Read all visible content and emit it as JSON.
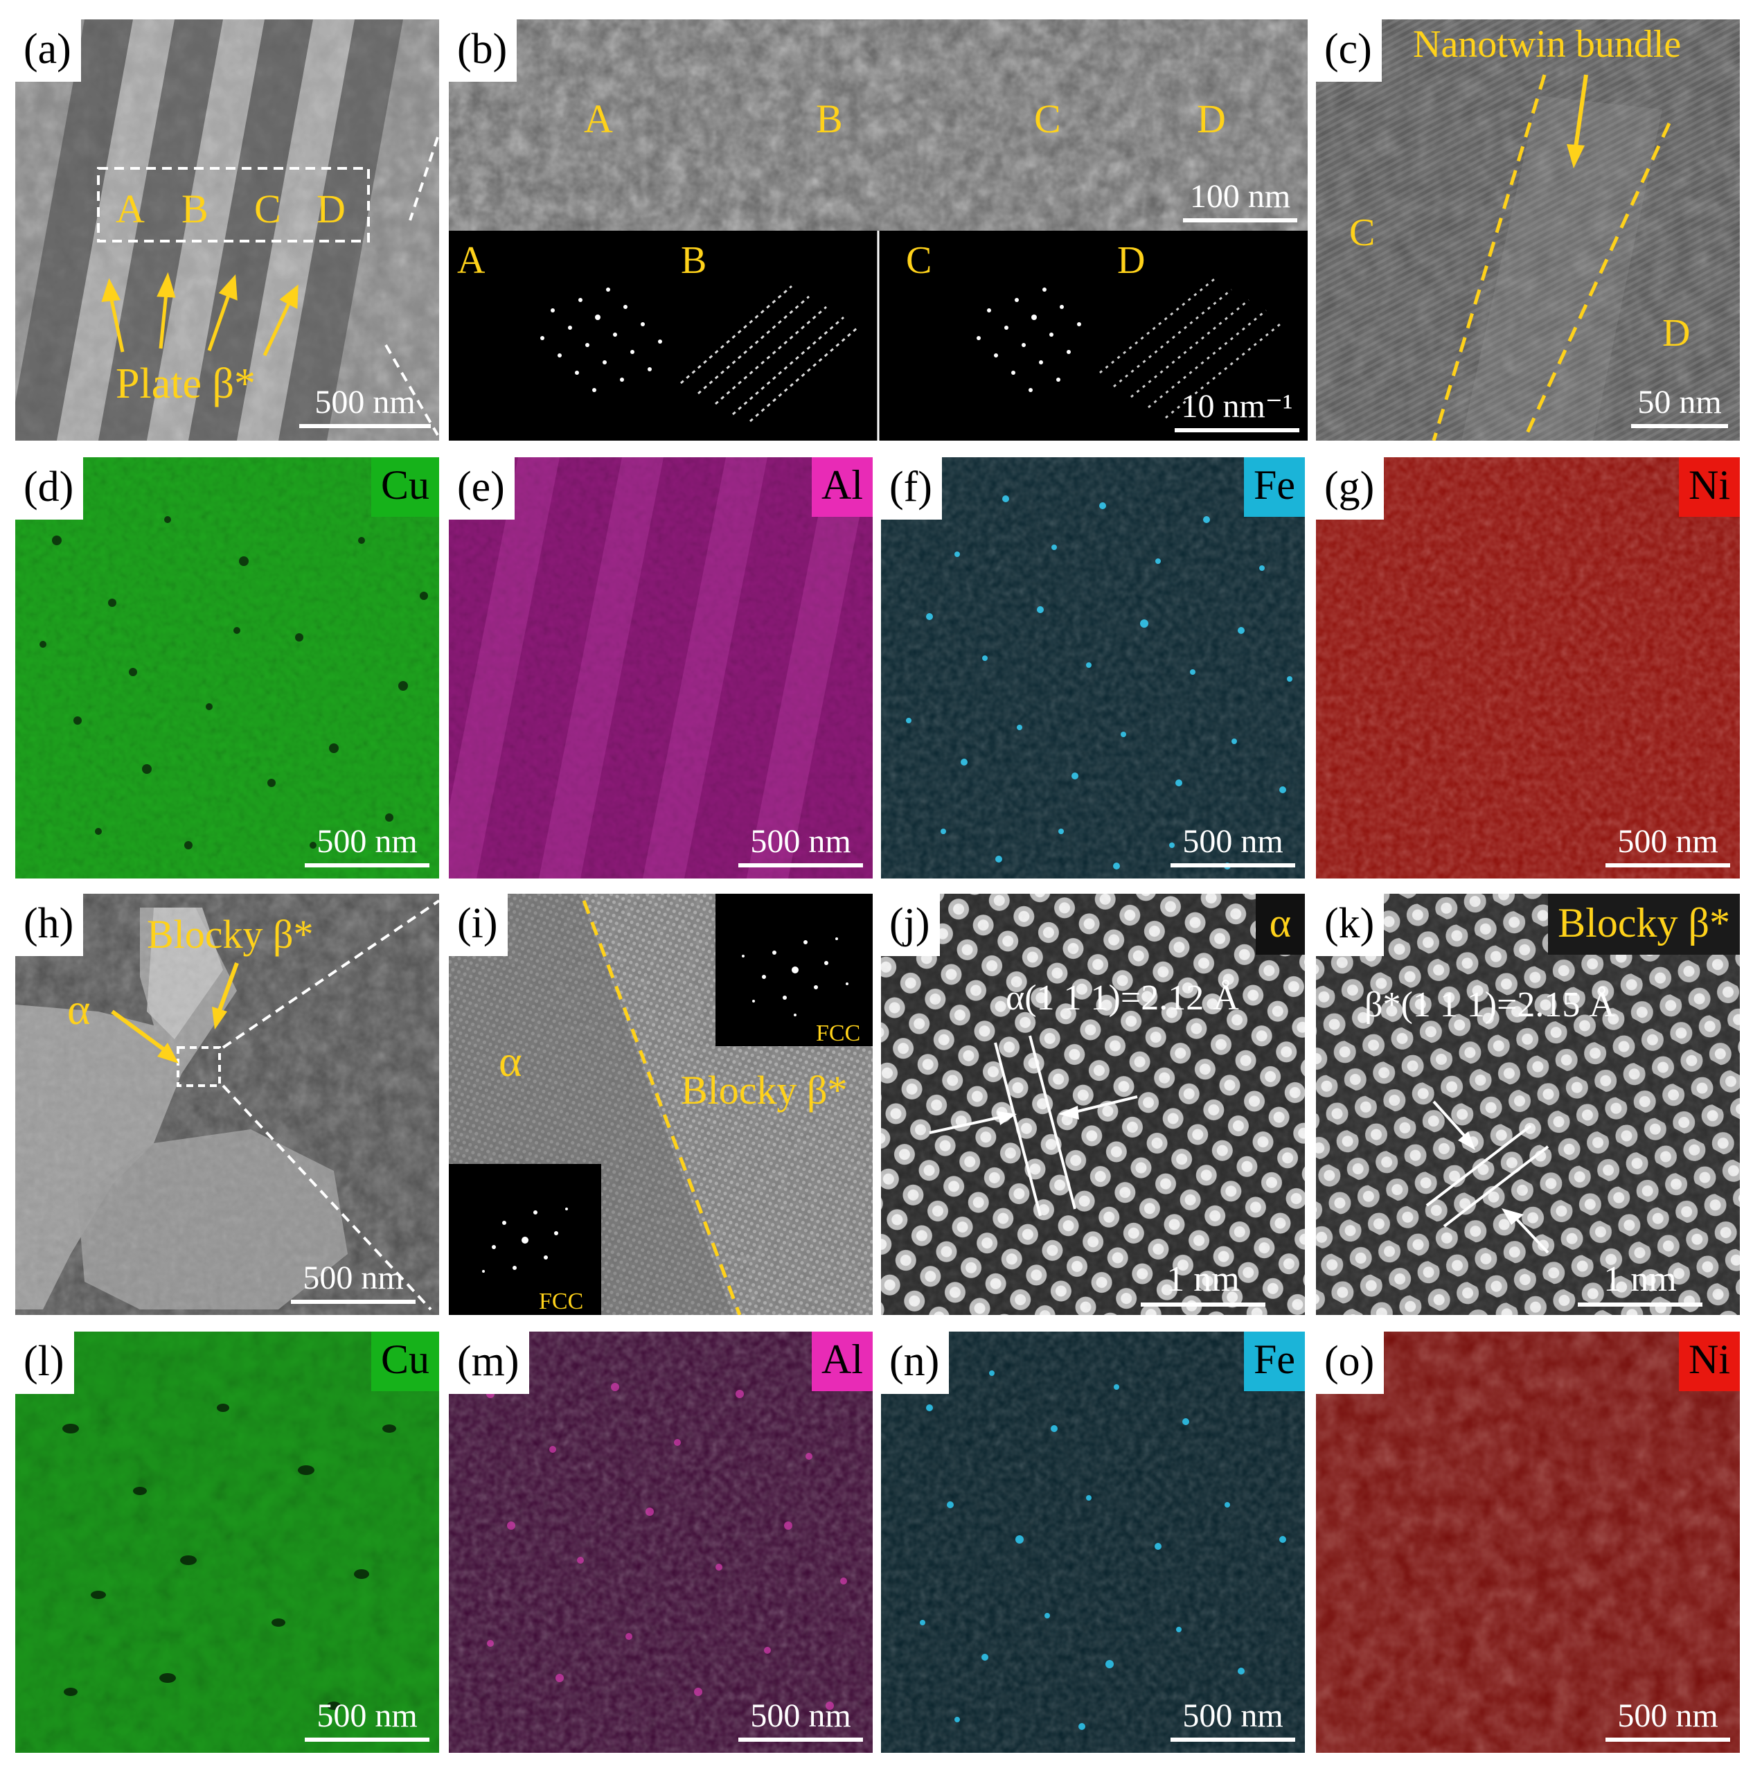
{
  "colors": {
    "label_yellow": "#ffd21a",
    "cu": "#16b21a",
    "al": "#e82bb6",
    "fe": "#1bb4d8",
    "ni": "#e8170f"
  },
  "panels": {
    "a": {
      "label": "(a)",
      "scale": "500 nm",
      "regions": [
        "A",
        "B",
        "C",
        "D"
      ],
      "annotation": "Plate β*"
    },
    "b": {
      "label": "(b)",
      "regions": [
        "A",
        "B",
        "C",
        "D"
      ],
      "scale_image": "100 nm",
      "saed_labels": [
        "A",
        "B",
        "C",
        "D"
      ],
      "scale_saed": "10 nm⁻¹"
    },
    "c": {
      "label": "(c)",
      "annotation": "Nanotwin bundle",
      "region_left": "C",
      "region_right": "D",
      "scale": "50 nm"
    },
    "d": {
      "label": "(d)",
      "element": "Cu",
      "scale": "500 nm"
    },
    "e": {
      "label": "(e)",
      "element": "Al",
      "scale": "500 nm"
    },
    "f": {
      "label": "(f)",
      "element": "Fe",
      "scale": "500 nm"
    },
    "g": {
      "label": "(g)",
      "element": "Ni",
      "scale": "500 nm"
    },
    "h": {
      "label": "(h)",
      "blocky": "Blocky β*",
      "alpha": "α",
      "scale": "500 nm"
    },
    "i": {
      "label": "(i)",
      "alpha": "α",
      "blocky": "Blocky β*",
      "fcc_top": "FCC",
      "fcc_bottom": "FCC"
    },
    "j": {
      "label": "(j)",
      "phase": "α",
      "spacing": "α(1 1 1)=2.12 Å",
      "scale": "1 nm"
    },
    "k": {
      "label": "(k)",
      "phase": "Blocky β*",
      "spacing": "β*(1 1 1)=2.15 Å",
      "scale": "1 nm"
    },
    "l": {
      "label": "(l)",
      "element": "Cu",
      "scale": "500 nm"
    },
    "m": {
      "label": "(m)",
      "element": "Al",
      "scale": "500 nm"
    },
    "n": {
      "label": "(n)",
      "element": "Fe",
      "scale": "500 nm"
    },
    "o": {
      "label": "(o)",
      "element": "Ni",
      "scale": "500 nm"
    }
  }
}
